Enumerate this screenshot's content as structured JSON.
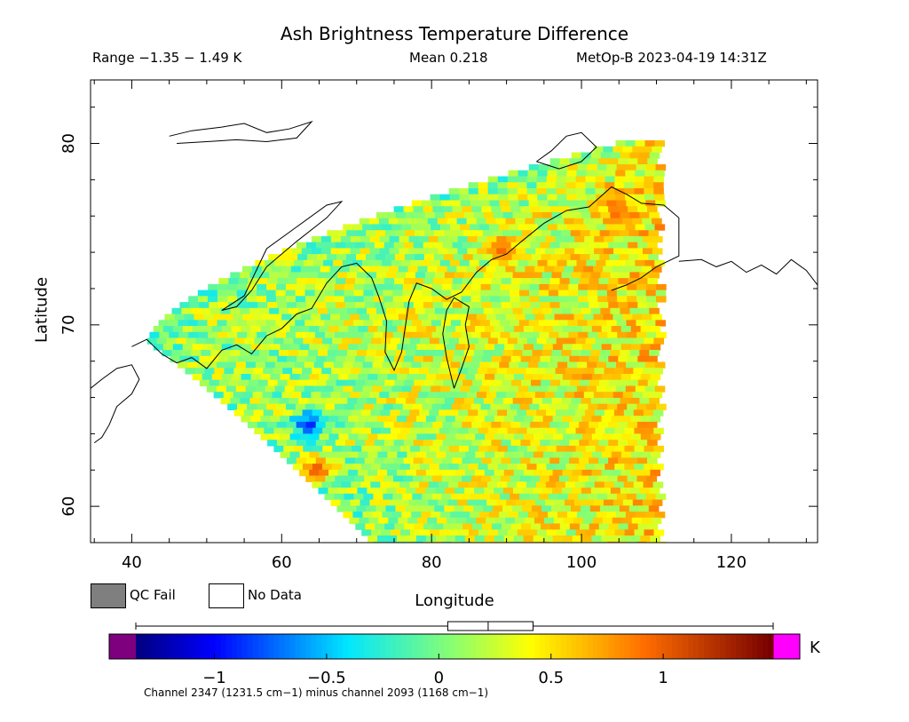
{
  "header": {
    "title": "Ash Brightness Temperature Difference",
    "range_text": "Range −1.35 − 1.49 K",
    "mean_text": "Mean 0.218",
    "satellite_text": "MetOp-B 2023-04-19 14:31Z"
  },
  "axes": {
    "xlabel": "Longitude",
    "ylabel": "Latitude",
    "xlim": [
      34.5,
      131.5
    ],
    "ylim": [
      58,
      83.5
    ],
    "x_ticks": [
      40,
      60,
      80,
      100,
      120
    ],
    "x_tick_labels": [
      "40",
      "60",
      "80",
      "100",
      "120"
    ],
    "y_ticks": [
      60,
      70,
      80
    ],
    "y_tick_labels": [
      "60",
      "70",
      "80"
    ]
  },
  "legend": {
    "qc_fail_label": "QC Fail",
    "no_data_label": "No Data",
    "qc_fail_color": "#7f7f7f",
    "no_data_color": "#ffffff"
  },
  "colorbar": {
    "min": -1.35,
    "max": 1.49,
    "unit": "K",
    "ticks": [
      -1,
      -0.5,
      0,
      0.5,
      1
    ],
    "tick_labels": [
      "−1",
      "−0.5",
      "0",
      "0.5",
      "1"
    ],
    "under_color": "#7f007f",
    "over_color": "#ff00ff",
    "box_low": 0.04,
    "box_high": 0.42,
    "median": 0.22,
    "whisker_low": -1.35,
    "whisker_high": 1.49
  },
  "footnote": "Channel 2347 (1231.5 cm−1) minus channel 2093 (1168 cm−1)",
  "chart_data": {
    "type": "heatmap",
    "title": "Ash Brightness Temperature Difference",
    "xlabel": "Longitude",
    "ylabel": "Latitude",
    "xlim": [
      34.5,
      131.5
    ],
    "ylim": [
      58,
      83.5
    ],
    "value_min": -1.35,
    "value_max": 1.49,
    "value_mean": 0.218,
    "unit": "K",
    "swath": {
      "lon_west_edge": [
        42,
        72
      ],
      "lat_west_edge": [
        69,
        58
      ],
      "lon_east_edge": 110,
      "lat_top": 80
    },
    "features": [
      {
        "label": "",
        "lon": 63,
        "lat": 64.5,
        "value": -1.0
      },
      {
        "label": "",
        "lon": 64,
        "lat": 62,
        "value": 1.1
      },
      {
        "label": "",
        "lon": 89,
        "lat": 74,
        "value": 1.0
      },
      {
        "label": "",
        "lon": 104,
        "lat": 76.5,
        "value": 1.0
      }
    ]
  }
}
